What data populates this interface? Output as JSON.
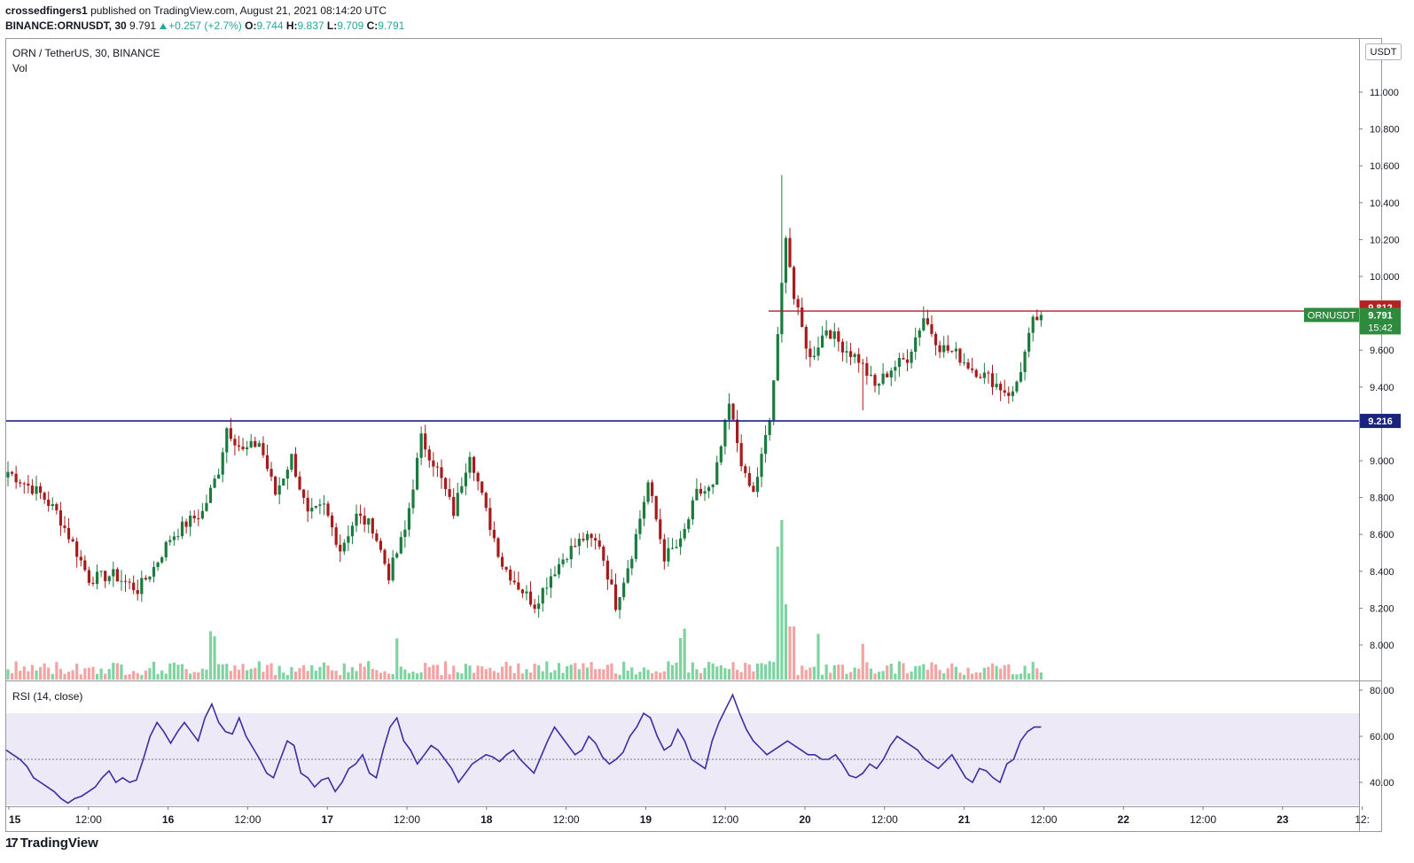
{
  "header": {
    "author": "crossedfingers1",
    "published_text": "published on TradingView.com, August 21, 2021 08:14:20 UTC",
    "symbol": "BINANCE:ORNUSDT, 30",
    "last": "9.791",
    "change": "+0.257 (+2.7%)",
    "o_label": "O:",
    "o_value": "9.744",
    "h_label": "H:",
    "h_value": "9.837",
    "l_label": "L:",
    "l_value": "9.709",
    "c_label": "C:",
    "c_value": "9.791"
  },
  "pane": {
    "legend_title": "ORN / TetherUS, 30, BINANCE",
    "legend_vol": "Vol",
    "currency": "USDT",
    "rsi_legend": "RSI (14, close)"
  },
  "price_labels": {
    "resistance": "9.812",
    "support": "9.216",
    "ticker": "ORNUSDT",
    "last": "9.791",
    "countdown": "15:42"
  },
  "footer": {
    "brand": "TradingView"
  },
  "colors": {
    "up": "#26a69a",
    "down": "#ef5350",
    "candle_up": "#1b7a3e",
    "candle_down": "#a61c1c",
    "resistance_line": "#b22222",
    "support_line": "#1a237e",
    "rsi_line": "#3b2fa0",
    "rsi_band": "#ede9f7",
    "last_price_bg": "#2e8b3e"
  },
  "chart_data": [
    {
      "type": "candlestick",
      "title": "ORN / TetherUS, 30, BINANCE",
      "ylim": [
        7.82,
        11.28
      ],
      "y_ticks": [
        "11.000",
        "10.800",
        "10.600",
        "10.400",
        "10.200",
        "10.000",
        "9.800",
        "9.600",
        "9.400",
        "9.200",
        "9.000",
        "8.800",
        "8.600",
        "8.400",
        "8.200",
        "8.000"
      ],
      "x_ticks": [
        "15",
        "12:00",
        "16",
        "12:00",
        "17",
        "12:00",
        "18",
        "12:00",
        "19",
        "12:00",
        "20",
        "12:00",
        "21",
        "12:00",
        "22",
        "12:00",
        "23",
        "12:"
      ],
      "horizontal_lines": [
        {
          "name": "resistance",
          "value": 9.812
        },
        {
          "name": "support",
          "value": 9.216
        }
      ],
      "anchor_closes": [
        [
          0,
          8.94
        ],
        [
          8,
          8.82
        ],
        [
          12,
          8.72
        ],
        [
          16,
          8.55
        ],
        [
          20,
          8.36
        ],
        [
          26,
          8.38
        ],
        [
          32,
          8.3
        ],
        [
          36,
          8.42
        ],
        [
          40,
          8.58
        ],
        [
          44,
          8.66
        ],
        [
          48,
          8.72
        ],
        [
          52,
          8.95
        ],
        [
          54,
          9.18
        ],
        [
          58,
          9.05
        ],
        [
          62,
          9.1
        ],
        [
          66,
          8.82
        ],
        [
          70,
          9.02
        ],
        [
          74,
          8.7
        ],
        [
          78,
          8.75
        ],
        [
          82,
          8.52
        ],
        [
          86,
          8.7
        ],
        [
          90,
          8.64
        ],
        [
          94,
          8.38
        ],
        [
          98,
          8.62
        ],
        [
          102,
          9.12
        ],
        [
          106,
          8.95
        ],
        [
          110,
          8.72
        ],
        [
          114,
          9.05
        ],
        [
          118,
          8.72
        ],
        [
          122,
          8.44
        ],
        [
          126,
          8.32
        ],
        [
          130,
          8.22
        ],
        [
          134,
          8.38
        ],
        [
          138,
          8.5
        ],
        [
          142,
          8.58
        ],
        [
          146,
          8.55
        ],
        [
          150,
          8.22
        ],
        [
          154,
          8.5
        ],
        [
          158,
          8.88
        ],
        [
          162,
          8.48
        ],
        [
          166,
          8.55
        ],
        [
          170,
          8.82
        ],
        [
          174,
          8.85
        ],
        [
          178,
          9.3
        ],
        [
          182,
          8.9
        ],
        [
          184,
          8.82
        ],
        [
          188,
          9.22
        ],
        [
          190,
          9.66
        ],
        [
          192,
          10.24
        ],
        [
          194,
          9.88
        ],
        [
          198,
          9.55
        ],
        [
          202,
          9.72
        ],
        [
          206,
          9.62
        ],
        [
          210,
          9.55
        ],
        [
          214,
          9.4
        ],
        [
          218,
          9.5
        ],
        [
          222,
          9.56
        ],
        [
          226,
          9.78
        ],
        [
          230,
          9.62
        ],
        [
          234,
          9.58
        ],
        [
          238,
          9.5
        ],
        [
          242,
          9.45
        ],
        [
          246,
          9.38
        ],
        [
          248,
          9.36
        ],
        [
          250,
          9.5
        ],
        [
          253,
          9.75
        ],
        [
          255,
          9.791
        ]
      ]
    },
    {
      "type": "bar",
      "title": "Vol",
      "series": [
        {
          "values_note": "",
          "values": []
        }
      ]
    },
    {
      "type": "line",
      "title": "RSI (14, close)",
      "ylim": [
        33,
        82
      ],
      "y_ticks": [
        "80.00",
        "60.00",
        "40.00"
      ],
      "band": [
        30,
        70
      ],
      "midline": 50,
      "values": [
        54,
        52,
        50,
        47,
        42,
        40,
        38,
        36,
        33,
        31,
        33,
        34,
        36,
        38,
        42,
        45,
        40,
        42,
        40,
        41,
        50,
        60,
        66,
        62,
        57,
        62,
        66,
        62,
        58,
        68,
        74,
        66,
        62,
        61,
        68,
        60,
        55,
        50,
        44,
        42,
        50,
        58,
        56,
        44,
        42,
        38,
        41,
        42,
        36,
        40,
        46,
        48,
        52,
        44,
        42,
        54,
        64,
        68,
        58,
        54,
        48,
        52,
        56,
        54,
        50,
        46,
        40,
        44,
        48,
        50,
        52,
        51,
        49,
        52,
        54,
        50,
        47,
        44,
        51,
        58,
        64,
        60,
        56,
        52,
        54,
        60,
        57,
        51,
        48,
        50,
        53,
        60,
        64,
        70,
        68,
        60,
        54,
        56,
        63,
        58,
        50,
        48,
        46,
        58,
        66,
        72,
        78,
        70,
        63,
        58,
        55,
        52,
        54,
        56,
        58,
        56,
        54,
        52,
        52,
        50,
        50,
        52,
        48,
        43,
        42,
        44,
        48,
        46,
        50,
        56,
        60,
        58,
        56,
        54,
        50,
        48,
        46,
        49,
        52,
        47,
        42,
        40,
        46,
        45,
        42,
        40,
        48,
        50,
        58,
        62,
        64,
        64
      ]
    }
  ]
}
